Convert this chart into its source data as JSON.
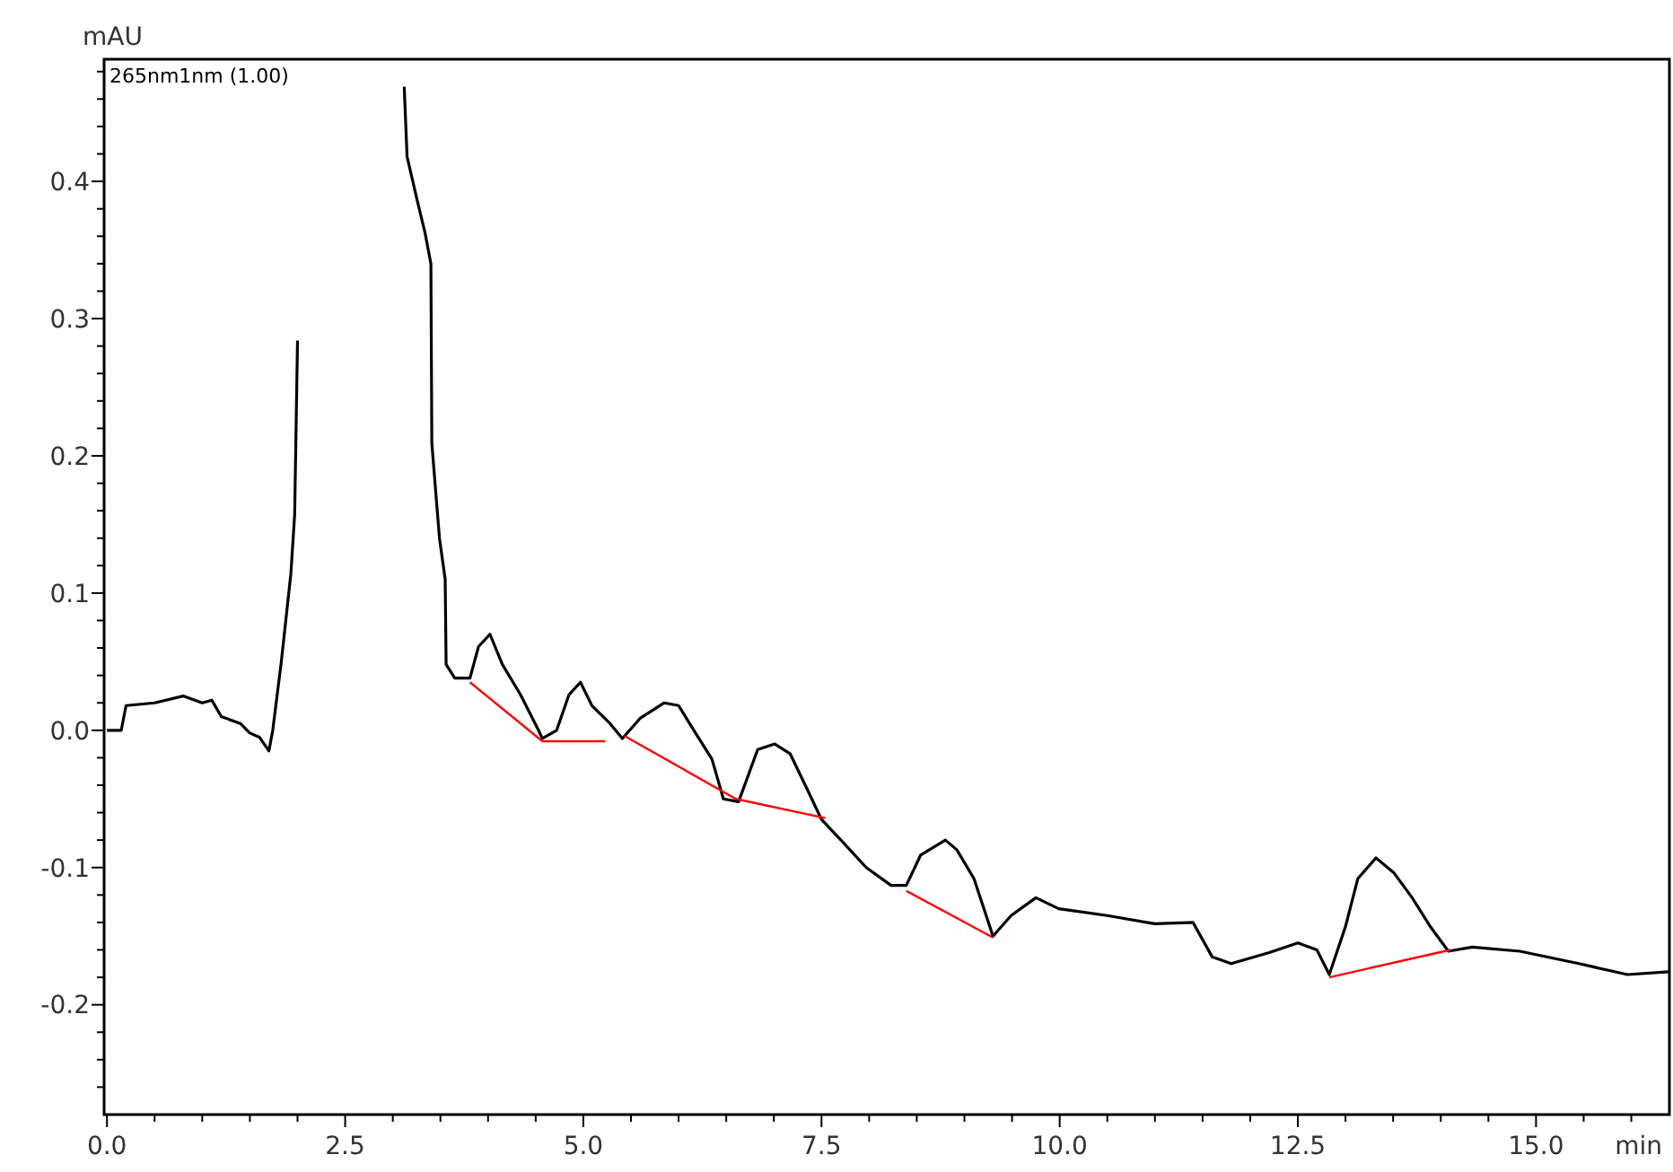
{
  "chart_data": {
    "type": "line",
    "xlabel": "min",
    "ylabel": "mAU",
    "xlim": [
      -0.03,
      16.4
    ],
    "ylim": [
      -0.28,
      0.489
    ],
    "xticks": [
      {
        "value": 0,
        "label": "0.0"
      },
      {
        "value": 0.5,
        "label": null
      },
      {
        "value": 1,
        "label": null
      },
      {
        "value": 1.5,
        "label": null
      },
      {
        "value": 2,
        "label": null
      },
      {
        "value": 2.5,
        "label": "2.5"
      },
      {
        "value": 3,
        "label": null
      },
      {
        "value": 3.5,
        "label": null
      },
      {
        "value": 4,
        "label": null
      },
      {
        "value": 4.5,
        "label": null
      },
      {
        "value": 5,
        "label": "5.0"
      },
      {
        "value": 5.5,
        "label": null
      },
      {
        "value": 6,
        "label": null
      },
      {
        "value": 6.5,
        "label": null
      },
      {
        "value": 7,
        "label": null
      },
      {
        "value": 7.5,
        "label": "7.5"
      },
      {
        "value": 8,
        "label": null
      },
      {
        "value": 8.5,
        "label": null
      },
      {
        "value": 9,
        "label": null
      },
      {
        "value": 9.5,
        "label": null
      },
      {
        "value": 10,
        "label": "10.0"
      },
      {
        "value": 10.5,
        "label": null
      },
      {
        "value": 11,
        "label": null
      },
      {
        "value": 11.5,
        "label": null
      },
      {
        "value": 12,
        "label": null
      },
      {
        "value": 12.5,
        "label": "12.5"
      },
      {
        "value": 13,
        "label": null
      },
      {
        "value": 13.5,
        "label": null
      },
      {
        "value": 14,
        "label": null
      },
      {
        "value": 14.5,
        "label": null
      },
      {
        "value": 15,
        "label": "15.0"
      },
      {
        "value": 15.5,
        "label": null
      },
      {
        "value": 16,
        "label": null
      }
    ],
    "yticks": [
      {
        "value": -0.26,
        "label": null
      },
      {
        "value": -0.24,
        "label": null
      },
      {
        "value": -0.22,
        "label": null
      },
      -0.2,
      {
        "value": -0.18,
        "label": null
      },
      {
        "value": -0.16,
        "label": null
      },
      {
        "value": -0.14,
        "label": null
      },
      {
        "value": -0.12,
        "label": null
      },
      -0.1,
      {
        "value": -0.08,
        "label": null
      },
      {
        "value": -0.06,
        "label": null
      },
      {
        "value": -0.04,
        "label": null
      },
      {
        "value": -0.02,
        "label": null
      },
      {
        "value": 0,
        "label": "0.0"
      },
      {
        "value": 0.02,
        "label": null
      },
      {
        "value": 0.04,
        "label": null
      },
      {
        "value": 0.06,
        "label": null
      },
      {
        "value": 0.08,
        "label": null
      },
      0.1,
      {
        "value": 0.12,
        "label": null
      },
      {
        "value": 0.14,
        "label": null
      },
      {
        "value": 0.16,
        "label": null
      },
      {
        "value": 0.18,
        "label": null
      },
      0.2,
      {
        "value": 0.22,
        "label": null
      },
      {
        "value": 0.24,
        "label": null
      },
      {
        "value": 0.26,
        "label": null
      },
      {
        "value": 0.28,
        "label": null
      },
      0.3,
      {
        "value": 0.32,
        "label": null
      },
      {
        "value": 0.34,
        "label": null
      },
      {
        "value": 0.36,
        "label": null
      },
      {
        "value": 0.38,
        "label": null
      },
      0.4,
      {
        "value": 0.42,
        "label": null
      },
      {
        "value": 0.44,
        "label": null
      },
      {
        "value": 0.46,
        "label": null
      },
      {
        "value": 0.48,
        "label": null
      }
    ],
    "grid": false,
    "marker": "none",
    "series": [
      {
        "name": "265nm1nm (1.00)",
        "color": "#000000",
        "x": [
          0,
          0.15,
          0.2,
          0.5,
          0.8,
          1.0,
          1.1,
          1.2,
          1.4,
          1.5,
          1.6,
          1.7,
          1.74,
          1.83,
          1.93,
          1.97,
          2.0,
          2.04,
          2.1,
          3.05,
          3.08,
          3.12,
          3.15,
          3.25,
          3.34,
          3.4,
          3.41,
          3.49,
          3.55,
          3.56,
          3.65,
          3.81,
          3.9,
          4.02,
          4.15,
          4.34,
          4.53,
          4.57,
          4.72,
          4.85,
          4.97,
          5.09,
          5.28,
          5.41,
          5.6,
          5.85,
          6.0,
          6.16,
          6.35,
          6.47,
          6.63,
          6.83,
          7.01,
          7.17,
          7.35,
          7.5,
          7.73,
          7.97,
          8.23,
          8.39,
          8.54,
          8.8,
          8.92,
          9.1,
          9.3,
          9.49,
          9.75,
          9.99,
          10.5,
          11.0,
          11.4,
          11.6,
          11.8,
          12.2,
          12.5,
          12.7,
          12.83,
          13.0,
          13.13,
          13.32,
          13.51,
          13.7,
          13.89,
          14.08,
          14.33,
          14.83,
          15.45,
          15.96,
          16.39
        ],
        "values": [
          0,
          0,
          0.018,
          0.02,
          0.025,
          0.02,
          0.022,
          0.01,
          0.005,
          -0.002,
          -0.005,
          -0.015,
          0,
          0.05,
          0.114,
          0.157,
          0.284,
          null,
          null,
          null,
          null,
          0.469,
          0.418,
          0.388,
          0.362,
          0.34,
          0.209,
          0.14,
          0.11,
          0.048,
          0.038,
          0.038,
          0.061,
          0.07,
          0.048,
          0.026,
          0,
          -0.006,
          0,
          0.026,
          0.035,
          0.018,
          0.005,
          -0.006,
          0.009,
          0.02,
          0.018,
          0,
          -0.021,
          -0.05,
          -0.052,
          -0.014,
          -0.01,
          -0.017,
          -0.043,
          -0.065,
          -0.082,
          -0.1,
          -0.113,
          -0.113,
          -0.091,
          -0.08,
          -0.087,
          -0.108,
          -0.15,
          -0.135,
          -0.122,
          -0.13,
          -0.135,
          -0.141,
          -0.14,
          -0.165,
          -0.17,
          -0.162,
          -0.155,
          -0.16,
          -0.178,
          -0.143,
          -0.108,
          -0.093,
          -0.104,
          -0.122,
          -0.143,
          -0.161,
          -0.158,
          -0.161,
          -0.17,
          -0.178,
          -0.176
        ]
      },
      {
        "color": "#ff0000",
        "x": [
          3.81,
          4.57,
          null,
          4.57,
          5.23,
          null,
          5.43,
          6.6,
          7.54,
          null,
          8.39,
          9.3,
          null,
          12.83,
          14.1
        ],
        "values": [
          0.035,
          -0.008,
          null,
          -0.008,
          -0.008,
          null,
          -0.004,
          -0.05,
          -0.064,
          null,
          -0.117,
          -0.151,
          null,
          -0.18,
          -0.16
        ]
      }
    ]
  }
}
